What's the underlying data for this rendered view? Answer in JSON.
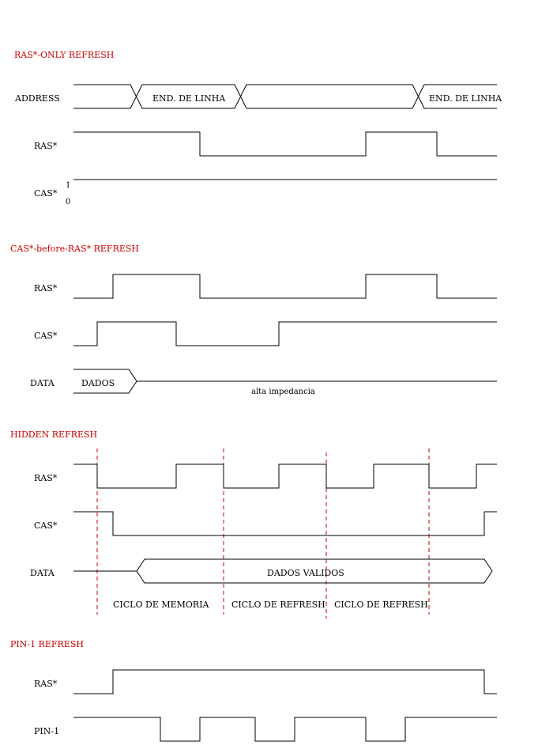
{
  "colors": {
    "title": "#cc0000",
    "marker": "#cc0000",
    "wave": "#000000"
  },
  "sections": {
    "ras_only": {
      "title": "RAS*-ONLY REFRESH",
      "address_label": "ADDRESS",
      "ras_label": "RAS*",
      "cas_label": "CAS*",
      "cas_high": "1",
      "cas_low": "0",
      "address_field_1": "END. DE LINHA",
      "address_field_2": "END. DE LINHA"
    },
    "cbr": {
      "title": "CAS*-before-RAS* REFRESH",
      "ras_label": "RAS*",
      "cas_label": "CAS*",
      "data_label": "DATA",
      "data_field": "DADOS",
      "hiz_note": "alta impedancia"
    },
    "hidden": {
      "title": "HIDDEN REFRESH",
      "ras_label": "RAS*",
      "cas_label": "CAS*",
      "data_label": "DATA",
      "data_field": "DADOS VALIDOS",
      "cycle_1": "CICLO DE MEMORIA",
      "cycle_2": "CICLO DE REFRESH",
      "cycle_3": "CICLO DE REFRESH"
    },
    "pin1": {
      "title": "PIN-1 REFRESH",
      "ras_label": "RAS*",
      "pin_label": "PIN-1"
    }
  }
}
